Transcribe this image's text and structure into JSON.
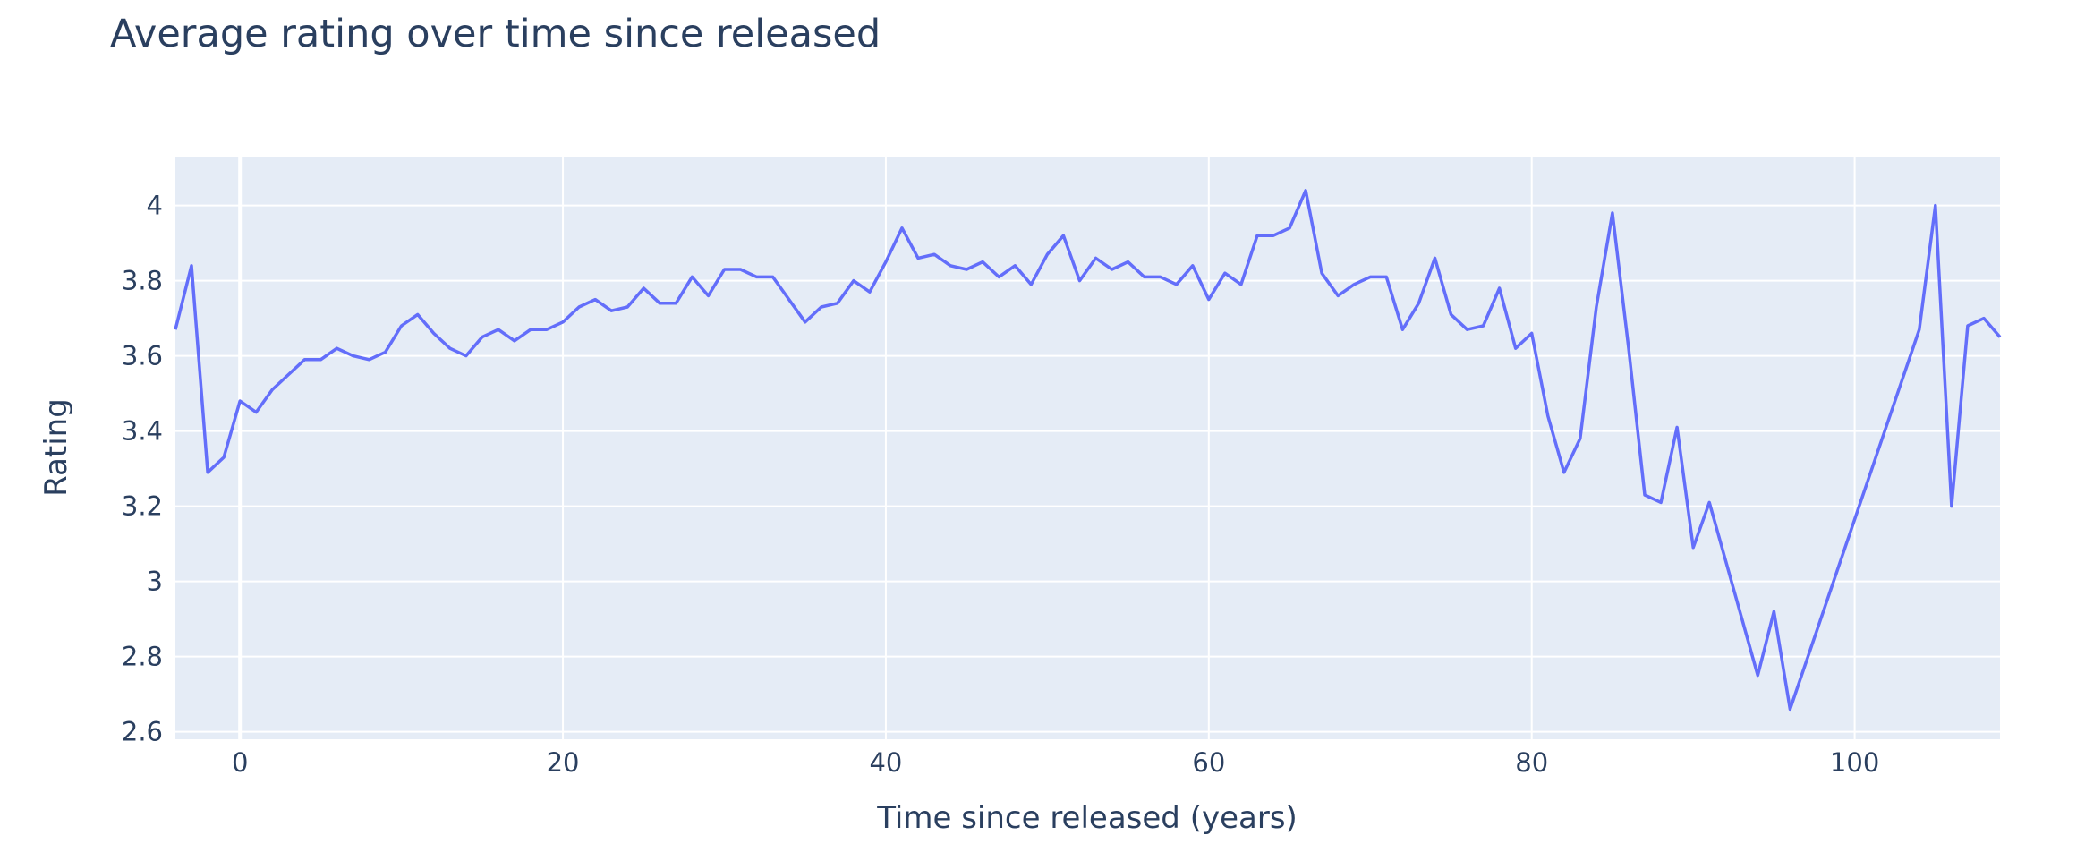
{
  "chart_data": {
    "type": "line",
    "title": "Average rating over time since released",
    "xlabel": "Time since released (years)",
    "ylabel": "Rating",
    "xlim": [
      -4,
      109
    ],
    "ylim": [
      2.58,
      4.13
    ],
    "x_ticks": [
      0,
      20,
      40,
      60,
      80,
      100
    ],
    "y_ticks": [
      2.6,
      2.8,
      3,
      3.2,
      3.4,
      3.6,
      3.8,
      4
    ],
    "y_tick_labels": [
      "2.6",
      "2.8",
      "3",
      "3.2",
      "3.4",
      "3.6",
      "3.8",
      "4"
    ],
    "grid": true,
    "plot_background": "#e5ecf6",
    "line_color": "#636efa",
    "series": [
      {
        "x": [
          -4,
          -3,
          -2,
          -1,
          0,
          1,
          2,
          3,
          4,
          5,
          6,
          7,
          8,
          9,
          10,
          11,
          12,
          13,
          14,
          15,
          16,
          17,
          18,
          19,
          20,
          21,
          22,
          23,
          24,
          25,
          26,
          27,
          28,
          29,
          30,
          31,
          32,
          33,
          34,
          35,
          36,
          37,
          38,
          39,
          40,
          41,
          42,
          43,
          44,
          45,
          46,
          47,
          48,
          49,
          50,
          51,
          52,
          53,
          54,
          55,
          56,
          57,
          58,
          59,
          60,
          61,
          62,
          63,
          64,
          65,
          66,
          67,
          68,
          69,
          70,
          71,
          72,
          73,
          74,
          75,
          76,
          77,
          78,
          79,
          80,
          81,
          82,
          83,
          84,
          85,
          86,
          87,
          88,
          89,
          90,
          91,
          94,
          95,
          96,
          104,
          105,
          106,
          107,
          108,
          109
        ],
        "y": [
          3.67,
          3.84,
          3.29,
          3.33,
          3.48,
          3.45,
          3.51,
          3.55,
          3.59,
          3.59,
          3.62,
          3.6,
          3.59,
          3.61,
          3.68,
          3.71,
          3.66,
          3.62,
          3.6,
          3.65,
          3.67,
          3.64,
          3.67,
          3.67,
          3.69,
          3.73,
          3.75,
          3.72,
          3.73,
          3.78,
          3.74,
          3.74,
          3.81,
          3.76,
          3.83,
          3.83,
          3.81,
          3.81,
          3.75,
          3.69,
          3.73,
          3.74,
          3.8,
          3.77,
          3.85,
          3.94,
          3.86,
          3.87,
          3.84,
          3.83,
          3.85,
          3.81,
          3.84,
          3.79,
          3.87,
          3.92,
          3.8,
          3.86,
          3.83,
          3.85,
          3.81,
          3.81,
          3.79,
          3.84,
          3.75,
          3.82,
          3.79,
          3.92,
          3.92,
          3.94,
          4.04,
          3.82,
          3.76,
          3.79,
          3.81,
          3.81,
          3.67,
          3.74,
          3.86,
          3.71,
          3.67,
          3.68,
          3.78,
          3.62,
          3.66,
          3.44,
          3.29,
          3.38,
          3.73,
          3.98,
          3.62,
          3.23,
          3.21,
          3.41,
          3.09,
          3.21,
          2.75,
          2.92,
          2.66,
          3.67,
          4.0,
          3.2,
          3.68,
          3.7,
          3.65
        ]
      }
    ]
  }
}
